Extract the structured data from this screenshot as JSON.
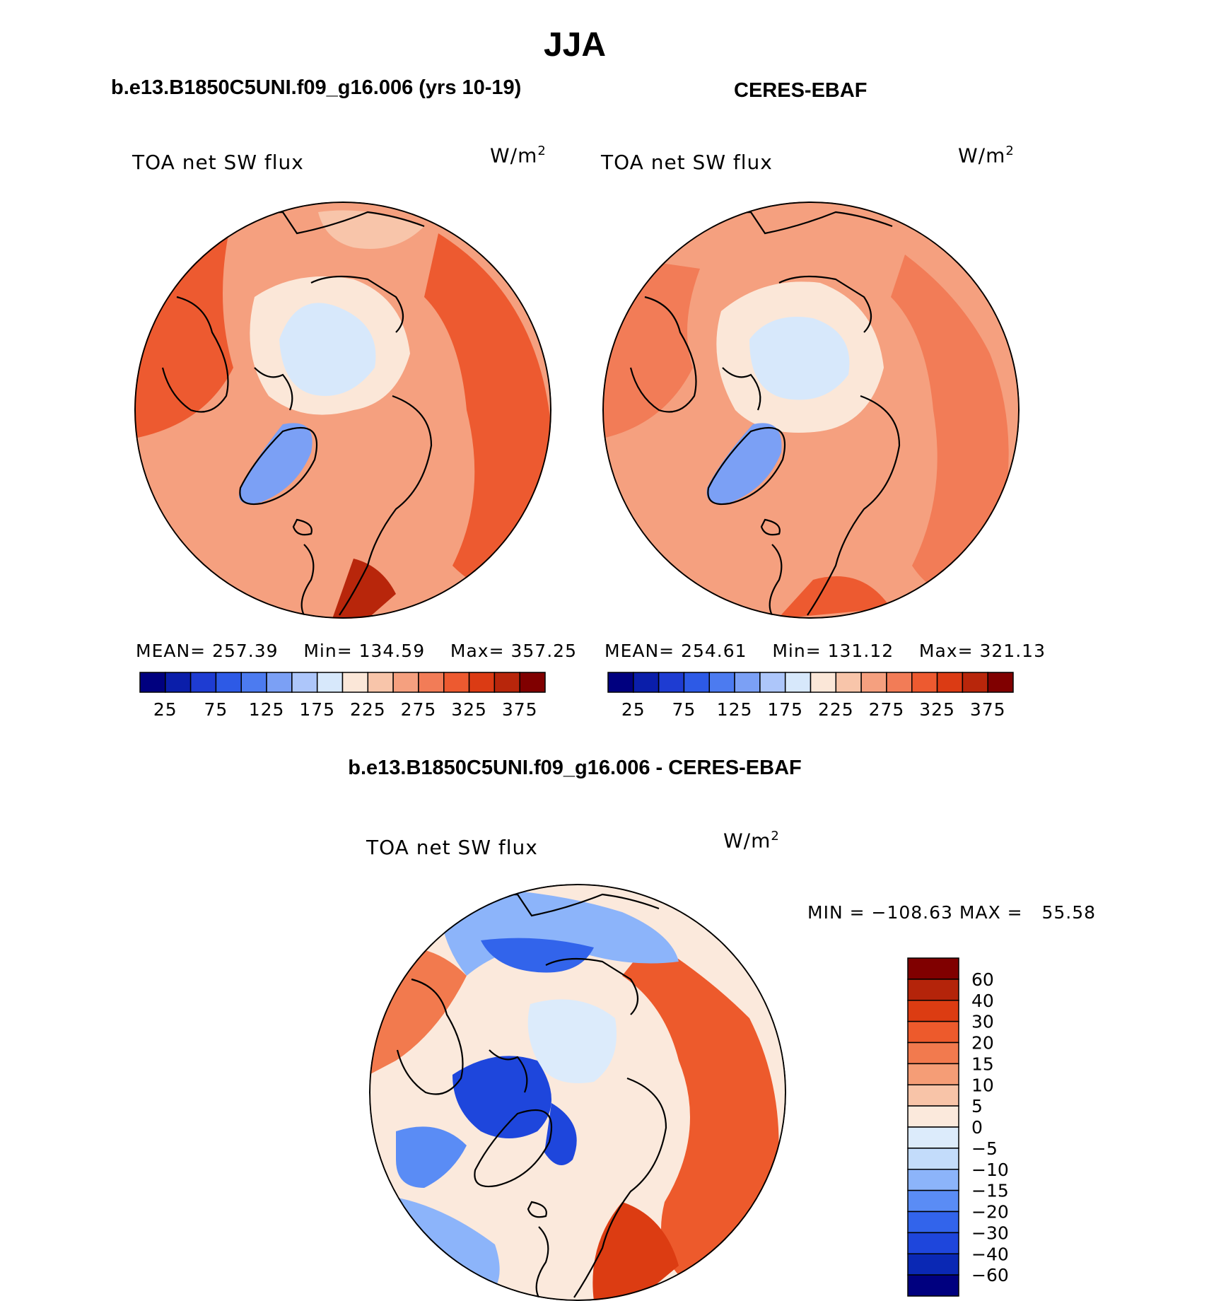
{
  "page_title": "JJA",
  "panels": {
    "model": {
      "title": "b.e13.B1850C5UNI.f09_g16.006 (yrs 10-19)",
      "variable": "TOA net SW flux",
      "units": "W/m",
      "units_sup": "2",
      "stats": {
        "mean_label": "MEAN=",
        "mean": "257.39",
        "min_label": "Min=",
        "min": "134.59",
        "max_label": "Max=",
        "max": "357.25"
      }
    },
    "obs": {
      "title": "CERES-EBAF",
      "variable": "TOA net SW flux",
      "units": "W/m",
      "units_sup": "2",
      "stats": {
        "mean_label": "MEAN=",
        "mean": "254.61",
        "min_label": "Min=",
        "min": "131.12",
        "max_label": "Max=",
        "max": "321.13"
      }
    },
    "diff": {
      "title": "b.e13.B1850C5UNI.f09_g16.006 - CERES-EBAF",
      "variable": "TOA net SW flux",
      "units": "W/m",
      "units_sup": "2",
      "stats": {
        "min_label": "MIN =",
        "min": "−108.63",
        "max_label": "MAX =",
        "max": "55.58"
      }
    }
  },
  "colorbar_abs": {
    "colors": [
      "#00007f",
      "#0a1eaa",
      "#1e3cd2",
      "#2d5ae6",
      "#4c7bf0",
      "#7ba0f5",
      "#adc6fa",
      "#d7e8fb",
      "#fbe7d8",
      "#f8c5aa",
      "#f5a07f",
      "#f27c57",
      "#ed5a30",
      "#db3b14",
      "#b8260b",
      "#800000"
    ],
    "labels": [
      "25",
      "75",
      "125",
      "175",
      "225",
      "275",
      "325",
      "375"
    ]
  },
  "colorbar_diff": {
    "colors": [
      "#00007f",
      "#0a28b4",
      "#1e46dc",
      "#3264eb",
      "#5a8cf5",
      "#8cb4fa",
      "#c3dcfb",
      "#dcebfb",
      "#fbe9dc",
      "#f8c4a8",
      "#f59d76",
      "#f27a4e",
      "#ed5a2c",
      "#dc3c12",
      "#b4240a",
      "#800000"
    ],
    "labels": [
      "60",
      "40",
      "30",
      "20",
      "15",
      "10",
      "5",
      "0",
      "−5",
      "−10",
      "−15",
      "−20",
      "−30",
      "−40",
      "−60"
    ]
  }
}
